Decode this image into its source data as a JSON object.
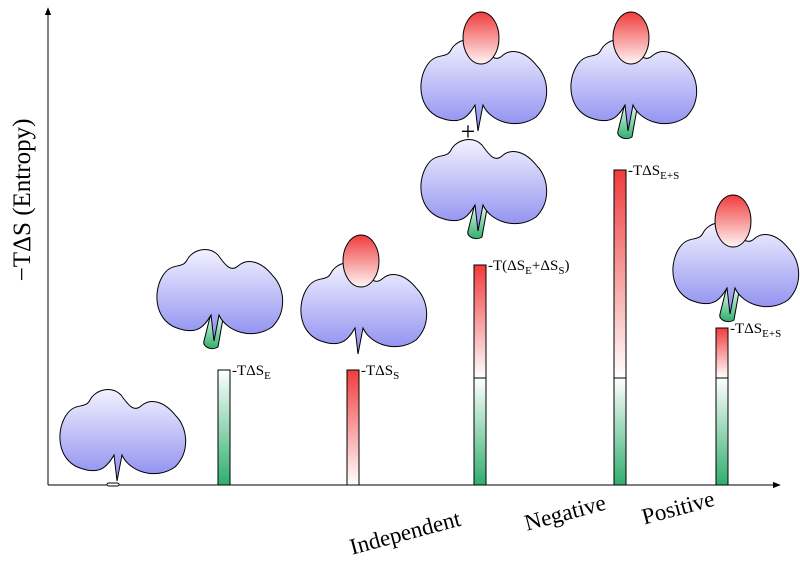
{
  "axis_label": "−TΔS  (Entropy)",
  "plus": "+",
  "bar_labels": [
    [
      {
        "text": "-TΔS"
      },
      {
        "sub": "E"
      }
    ],
    [
      {
        "text": "-TΔS"
      },
      {
        "sub": "S"
      }
    ],
    [
      {
        "text": "-T(ΔS"
      },
      {
        "sub": "E"
      },
      {
        "text": "+ΔS"
      },
      {
        "sub": "S"
      },
      {
        "text": ")"
      }
    ],
    [
      {
        "text": "-TΔS"
      },
      {
        "sub": "E+S"
      }
    ],
    [
      {
        "text": "-TΔS"
      },
      {
        "sub": "E+S"
      }
    ]
  ],
  "categories": [
    "Independent",
    "Negative",
    "Positive"
  ]
}
